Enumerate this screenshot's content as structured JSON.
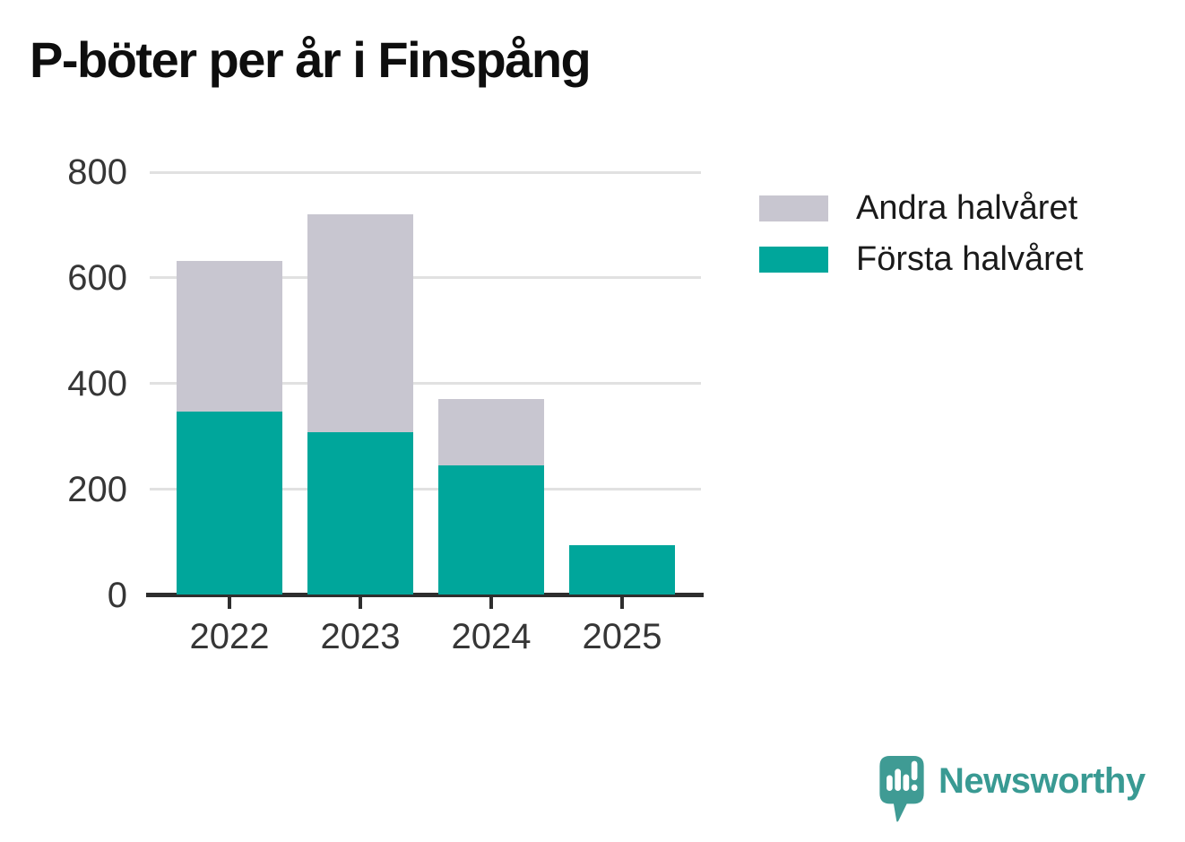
{
  "title": "P-böter per år i Finspång",
  "chart_data": {
    "type": "bar",
    "stacked": true,
    "title": "P-böter per år i Finspång",
    "categories": [
      "2022",
      "2023",
      "2024",
      "2025"
    ],
    "series": [
      {
        "name": "Första halvåret",
        "color": "#00a69b",
        "values": [
          347,
          308,
          245,
          95
        ]
      },
      {
        "name": "Andra halvåret",
        "color": "#c8c6d0",
        "values": [
          285,
          412,
          125,
          0
        ]
      }
    ],
    "totals": [
      632,
      720,
      370,
      95
    ],
    "xlabel": "",
    "ylabel": "",
    "ylim": [
      0,
      800
    ],
    "yticks": [
      0,
      200,
      400,
      600,
      800
    ],
    "grid": "horizontal",
    "legend_position": "right",
    "legend_order": [
      "Andra halvåret",
      "Första halvåret"
    ]
  },
  "legend": {
    "items": [
      {
        "label": "Andra halvåret",
        "color": "#c8c6d0"
      },
      {
        "label": "Första halvåret",
        "color": "#00a69b"
      }
    ]
  },
  "footer": {
    "brand": "Newsworthy",
    "brand_color": "#399a93"
  }
}
